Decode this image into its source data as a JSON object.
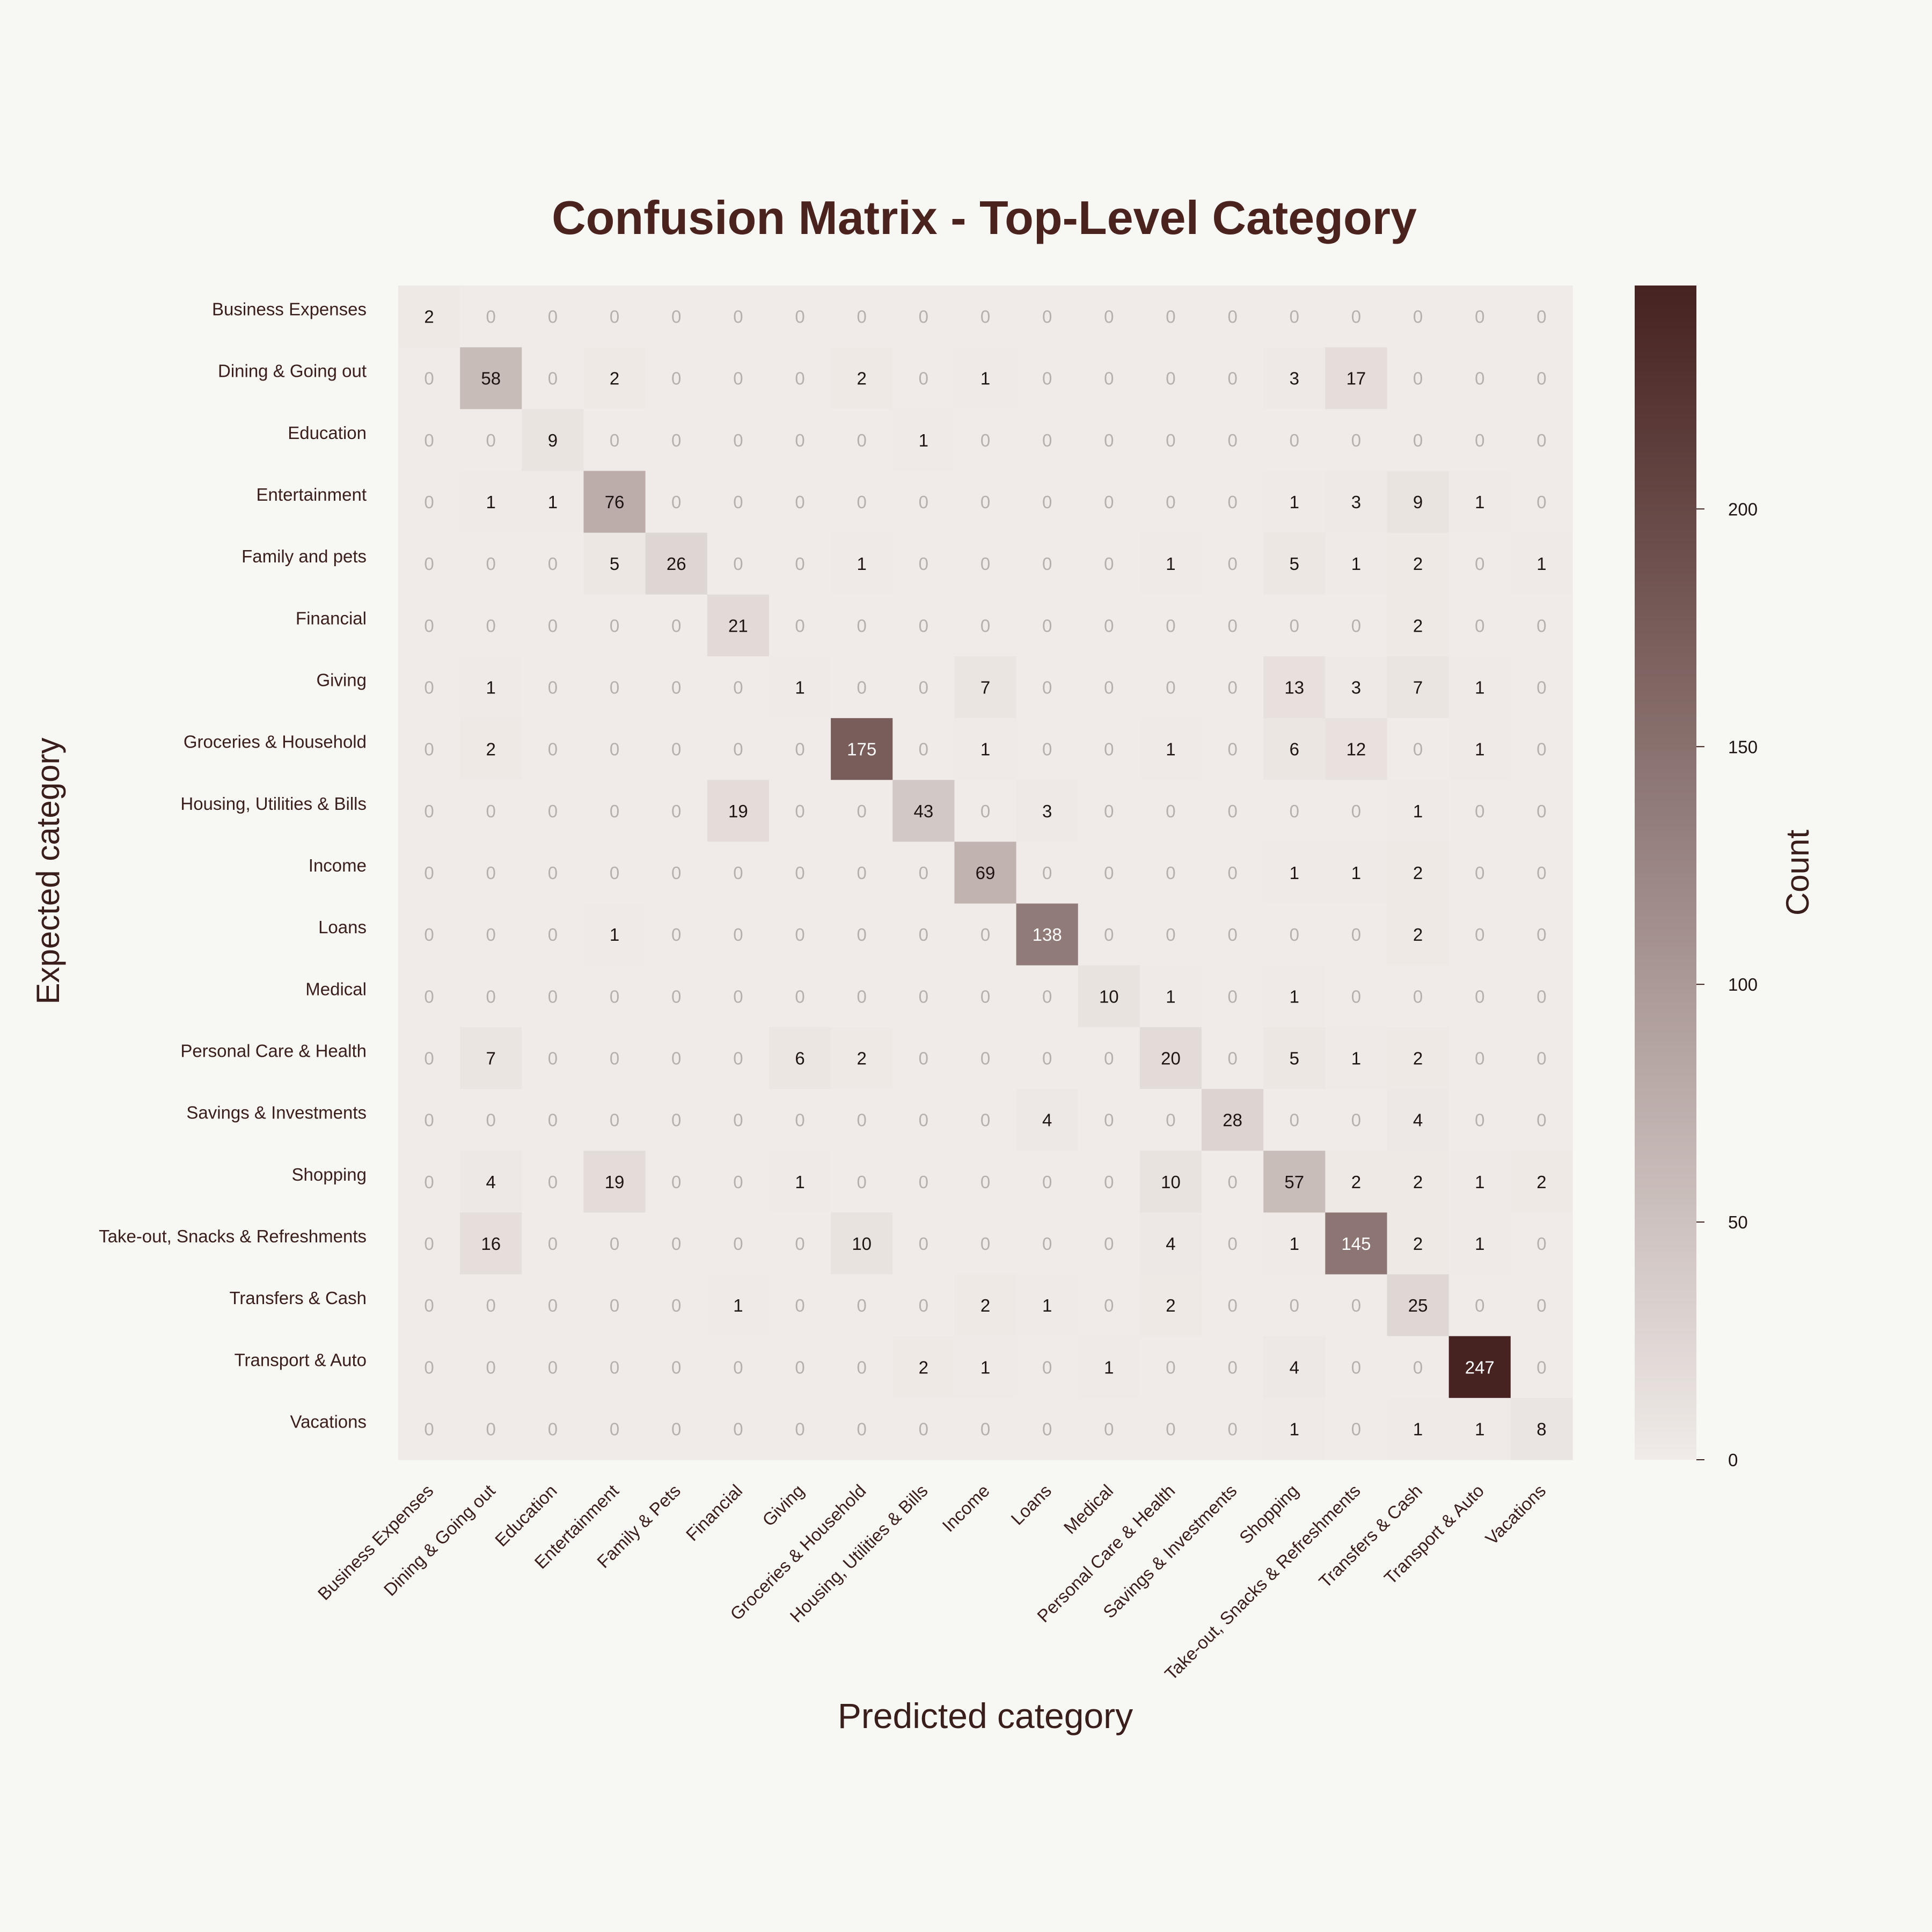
{
  "colors": {
    "background": "#f7f7f3",
    "low": "#f0ebe8",
    "high": "#462220",
    "title": "#4a221e",
    "label": "#3a1e1c"
  },
  "chart_data": {
    "type": "heatmap",
    "title": "Confusion Matrix - Top-Level Category",
    "xlabel": "Predicted category",
    "ylabel": "Expected category",
    "colorbar_label": "Count",
    "colorbar_ticks": [
      0,
      50,
      100,
      150,
      200
    ],
    "vmin": 0,
    "vmax": 247,
    "row_labels": [
      "Business Expenses",
      "Dining & Going out",
      "Education",
      "Entertainment",
      "Family and pets",
      "Financial",
      "Giving",
      "Groceries & Household",
      "Housing, Utilities & Bills",
      "Income",
      "Loans",
      "Medical",
      "Personal Care & Health",
      "Savings & Investments",
      "Shopping",
      "Take-out, Snacks & Refreshments",
      "Transfers & Cash",
      "Transport & Auto",
      "Vacations"
    ],
    "col_labels": [
      "Business Expenses",
      "Dining & Going out",
      "Education",
      "Entertainment",
      "Family & Pets",
      "Financial",
      "Giving",
      "Groceries & Household",
      "Housing, Utilities & Bills",
      "Income",
      "Loans",
      "Medical",
      "Personal Care & Health",
      "Savings & Investments",
      "Shopping",
      "Take-out, Snacks & Refreshments",
      "Transfers & Cash",
      "Transport & Auto",
      "Vacations"
    ],
    "matrix": [
      [
        2,
        0,
        0,
        0,
        0,
        0,
        0,
        0,
        0,
        0,
        0,
        0,
        0,
        0,
        0,
        0,
        0,
        0,
        0
      ],
      [
        0,
        58,
        0,
        2,
        0,
        0,
        0,
        2,
        0,
        1,
        0,
        0,
        0,
        0,
        3,
        17,
        0,
        0,
        0
      ],
      [
        0,
        0,
        9,
        0,
        0,
        0,
        0,
        0,
        1,
        0,
        0,
        0,
        0,
        0,
        0,
        0,
        0,
        0,
        0
      ],
      [
        0,
        1,
        1,
        76,
        0,
        0,
        0,
        0,
        0,
        0,
        0,
        0,
        0,
        0,
        1,
        3,
        9,
        1,
        0
      ],
      [
        0,
        0,
        0,
        5,
        26,
        0,
        0,
        1,
        0,
        0,
        0,
        0,
        1,
        0,
        5,
        1,
        2,
        0,
        1
      ],
      [
        0,
        0,
        0,
        0,
        0,
        21,
        0,
        0,
        0,
        0,
        0,
        0,
        0,
        0,
        0,
        0,
        2,
        0,
        0
      ],
      [
        0,
        1,
        0,
        0,
        0,
        0,
        1,
        0,
        0,
        7,
        0,
        0,
        0,
        0,
        13,
        3,
        7,
        1,
        0
      ],
      [
        0,
        2,
        0,
        0,
        0,
        0,
        0,
        175,
        0,
        1,
        0,
        0,
        1,
        0,
        6,
        12,
        0,
        1,
        0
      ],
      [
        0,
        0,
        0,
        0,
        0,
        19,
        0,
        0,
        43,
        0,
        3,
        0,
        0,
        0,
        0,
        0,
        1,
        0,
        0
      ],
      [
        0,
        0,
        0,
        0,
        0,
        0,
        0,
        0,
        0,
        69,
        0,
        0,
        0,
        0,
        1,
        1,
        2,
        0,
        0
      ],
      [
        0,
        0,
        0,
        1,
        0,
        0,
        0,
        0,
        0,
        0,
        138,
        0,
        0,
        0,
        0,
        0,
        2,
        0,
        0
      ],
      [
        0,
        0,
        0,
        0,
        0,
        0,
        0,
        0,
        0,
        0,
        0,
        10,
        1,
        0,
        1,
        0,
        0,
        0,
        0
      ],
      [
        0,
        7,
        0,
        0,
        0,
        0,
        6,
        2,
        0,
        0,
        0,
        0,
        20,
        0,
        5,
        1,
        2,
        0,
        0
      ],
      [
        0,
        0,
        0,
        0,
        0,
        0,
        0,
        0,
        0,
        0,
        4,
        0,
        0,
        28,
        0,
        0,
        4,
        0,
        0
      ],
      [
        0,
        4,
        0,
        19,
        0,
        0,
        1,
        0,
        0,
        0,
        0,
        0,
        10,
        0,
        57,
        2,
        2,
        1,
        2
      ],
      [
        0,
        16,
        0,
        0,
        0,
        0,
        0,
        10,
        0,
        0,
        0,
        0,
        4,
        0,
        1,
        145,
        2,
        1,
        0
      ],
      [
        0,
        0,
        0,
        0,
        0,
        1,
        0,
        0,
        0,
        2,
        1,
        0,
        2,
        0,
        0,
        0,
        25,
        0,
        0
      ],
      [
        0,
        0,
        0,
        0,
        0,
        0,
        0,
        0,
        2,
        1,
        0,
        1,
        0,
        0,
        4,
        0,
        0,
        247,
        0
      ],
      [
        0,
        0,
        0,
        0,
        0,
        0,
        0,
        0,
        0,
        0,
        0,
        0,
        0,
        0,
        1,
        0,
        1,
        1,
        8
      ]
    ]
  }
}
